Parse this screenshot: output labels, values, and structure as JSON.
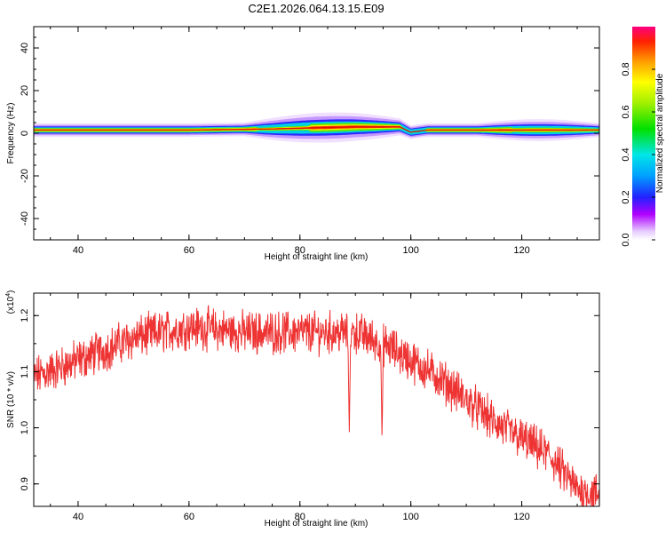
{
  "title": "C2E1.2026.064.13.15.E09",
  "chart_data": [
    {
      "type": "heatmap",
      "xlabel": "Height of straight line (km)",
      "ylabel": "Frequency (Hz)",
      "xlim": [
        32,
        134
      ],
      "ylim": [
        -50,
        50
      ],
      "xticks": [
        40,
        60,
        80,
        100,
        120
      ],
      "yticks": [
        40,
        20,
        0,
        -20,
        -40
      ],
      "ytick_labels": [
        "40",
        "20",
        "0",
        "-20",
        "-40"
      ],
      "colorbar": {
        "label": "Normalized spectral amplitude",
        "range": [
          0,
          1
        ],
        "ticks": [
          "0.0",
          "0.2",
          "0.4",
          "0.6",
          "0.8"
        ],
        "tick_values": [
          0.0,
          0.2,
          0.4,
          0.6,
          0.8
        ]
      },
      "peak_frequency_trace": [
        {
          "x": 33,
          "f": 1.5
        },
        {
          "x": 60,
          "f": 1.5
        },
        {
          "x": 75,
          "f": 2.0
        },
        {
          "x": 82,
          "f": 2.5
        },
        {
          "x": 90,
          "f": 3.0
        },
        {
          "x": 98,
          "f": 3.0
        },
        {
          "x": 100,
          "f": 0.5
        },
        {
          "x": 103,
          "f": 1.5
        },
        {
          "x": 134,
          "f": 1.5
        }
      ]
    },
    {
      "type": "line",
      "xlabel": "Height of straight line (km)",
      "ylabel": "SNR (10 * v/v)",
      "y_multiplier_label": "(x10",
      "y_multiplier_exp": "4",
      "xlim": [
        32,
        134
      ],
      "ylim": [
        0.86,
        1.24
      ],
      "xticks": [
        40,
        60,
        80,
        100,
        120
      ],
      "yticks": [
        0.9,
        1.0,
        1.1,
        1.2
      ],
      "ytick_labels": [
        "0.9",
        "1.0",
        "1.1",
        "1.2"
      ],
      "series": [
        {
          "color": "#ee3333",
          "trend": [
            {
              "x": 32,
              "y": 1.09
            },
            {
              "x": 40,
              "y": 1.12
            },
            {
              "x": 50,
              "y": 1.16
            },
            {
              "x": 60,
              "y": 1.18
            },
            {
              "x": 70,
              "y": 1.17
            },
            {
              "x": 80,
              "y": 1.17
            },
            {
              "x": 85,
              "y": 1.17
            },
            {
              "x": 90,
              "y": 1.17
            },
            {
              "x": 95,
              "y": 1.15
            },
            {
              "x": 100,
              "y": 1.12
            },
            {
              "x": 105,
              "y": 1.09
            },
            {
              "x": 110,
              "y": 1.05
            },
            {
              "x": 115,
              "y": 1.01
            },
            {
              "x": 120,
              "y": 0.98
            },
            {
              "x": 125,
              "y": 0.95
            },
            {
              "x": 130,
              "y": 0.89
            },
            {
              "x": 134,
              "y": 0.88
            }
          ],
          "dips": [
            {
              "x": 88.9,
              "y": 0.985
            },
            {
              "x": 94.8,
              "y": 0.98
            }
          ]
        }
      ]
    }
  ]
}
